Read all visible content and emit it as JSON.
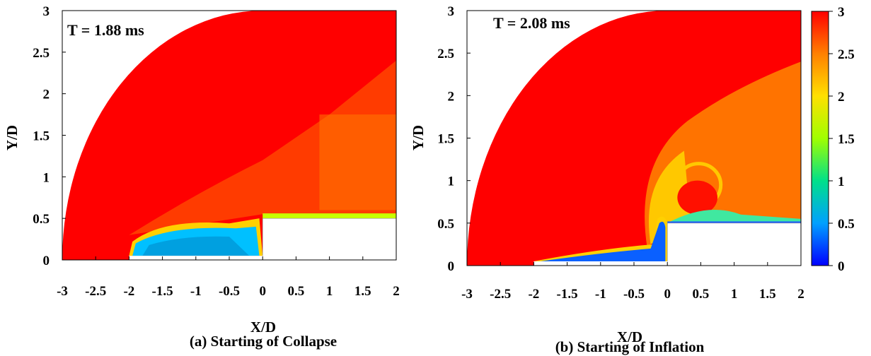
{
  "chart_data": [
    {
      "type": "heatmap",
      "annotation": "T = 1.88 ms",
      "xlabel": "X/D",
      "ylabel": "Y/D",
      "caption": "(a) Starting of Collapse",
      "xlim": [
        -3,
        2
      ],
      "ylim": [
        0,
        3
      ],
      "xticks": [
        "-3",
        "-2.5",
        "-2",
        "-1.5",
        "-1",
        "-0.5",
        "0",
        "0.5",
        "1",
        "1.5",
        "2"
      ],
      "yticks": [
        "0",
        "0.5",
        "1",
        "1.5",
        "2",
        "2.5",
        "3"
      ],
      "domain_radius": 3,
      "body": {
        "parachute_x": [
          -2,
          0
        ],
        "parachute_y_max": 0.05,
        "capsule_x_min": 0,
        "capsule_y_max": 0.5
      }
    },
    {
      "type": "heatmap",
      "annotation": "T = 2.08 ms",
      "xlabel": "X/D",
      "ylabel": "Y/D",
      "caption": "(b) Starting of Inflation",
      "xlim": [
        -3,
        2
      ],
      "ylim": [
        0,
        3
      ],
      "xticks": [
        "-3",
        "-2.5",
        "-2",
        "-1.5",
        "-1",
        "-0.5",
        "0",
        "0.5",
        "1",
        "1.5",
        "2"
      ],
      "yticks": [
        "0",
        "0.5",
        "1",
        "1.5",
        "2",
        "2.5",
        "3"
      ],
      "domain_radius": 3,
      "body": {
        "parachute_x": [
          -2,
          0
        ],
        "parachute_y_max": 0.05,
        "capsule_x_min": 0,
        "capsule_y_max": 0.5
      }
    }
  ],
  "colorbar": {
    "range": [
      0,
      3
    ],
    "ticks": [
      "0",
      "0.5",
      "1",
      "1.5",
      "2",
      "2.5",
      "3"
    ],
    "colors": [
      "#0000ff",
      "#00a0ff",
      "#00e08a",
      "#a0ff00",
      "#ffe000",
      "#ff8000",
      "#ff0000"
    ]
  }
}
